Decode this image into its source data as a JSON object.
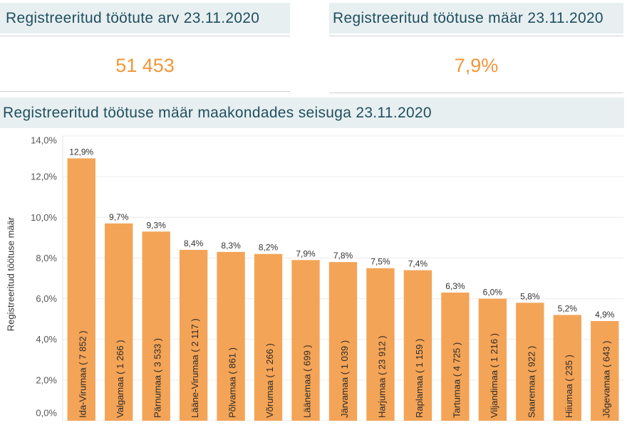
{
  "colors": {
    "kpi_value": "#f3963b",
    "bar": "#f4a457",
    "header_bg": "#e8eff1",
    "header_text": "#1f4f5f"
  },
  "kpis": [
    {
      "title": "Registreeritud töötute arv 23.11.2020",
      "value": "51 453"
    },
    {
      "title": "Registreeritud töötuse määr 23.11.2020",
      "value": "7,9%"
    }
  ],
  "chart_data": {
    "type": "bar",
    "title": "Registreeritud töötuse määr maakondades seisuga 23.11.2020",
    "ylabel": "Registreeritud töötuse määr",
    "categories": [
      "Ida-Virumaa ( 7 852 )",
      "Valgamaa ( 1 266 )",
      "Pärnumaa ( 3 533 )",
      "Lääne-Virumaa ( 2 117 )",
      "Põlvamaa ( 861 )",
      "Võrumaa ( 1 266 )",
      "Läänemaa ( 699 )",
      "Järvamaa ( 1 039 )",
      "Harjumaa ( 23 912 )",
      "Raplamaa ( 1 159 )",
      "Tartumaa ( 4 725 )",
      "Viljandimaa ( 1 216 )",
      "Saaremaa ( 922 )",
      "Hiiumaa ( 235 )",
      "Jõgevamaa ( 643 )"
    ],
    "values": [
      12.9,
      9.7,
      9.3,
      8.4,
      8.3,
      8.2,
      7.9,
      7.8,
      7.5,
      7.4,
      6.3,
      6.0,
      5.8,
      5.2,
      4.9
    ],
    "value_labels": [
      "12,9%",
      "9,7%",
      "9,3%",
      "8,4%",
      "8,3%",
      "8,2%",
      "7,9%",
      "7,8%",
      "7,5%",
      "7,4%",
      "6,3%",
      "6,0%",
      "5,8%",
      "5,2%",
      "4,9%"
    ],
    "ylim": [
      0,
      14
    ],
    "yticks": [
      0,
      2,
      4,
      6,
      8,
      10,
      12,
      14
    ],
    "ytick_labels": [
      "0,0%",
      "2,0%",
      "4,0%",
      "6,0%",
      "8,0%",
      "10,0%",
      "12,0%",
      "14,0%"
    ],
    "grid": true
  }
}
